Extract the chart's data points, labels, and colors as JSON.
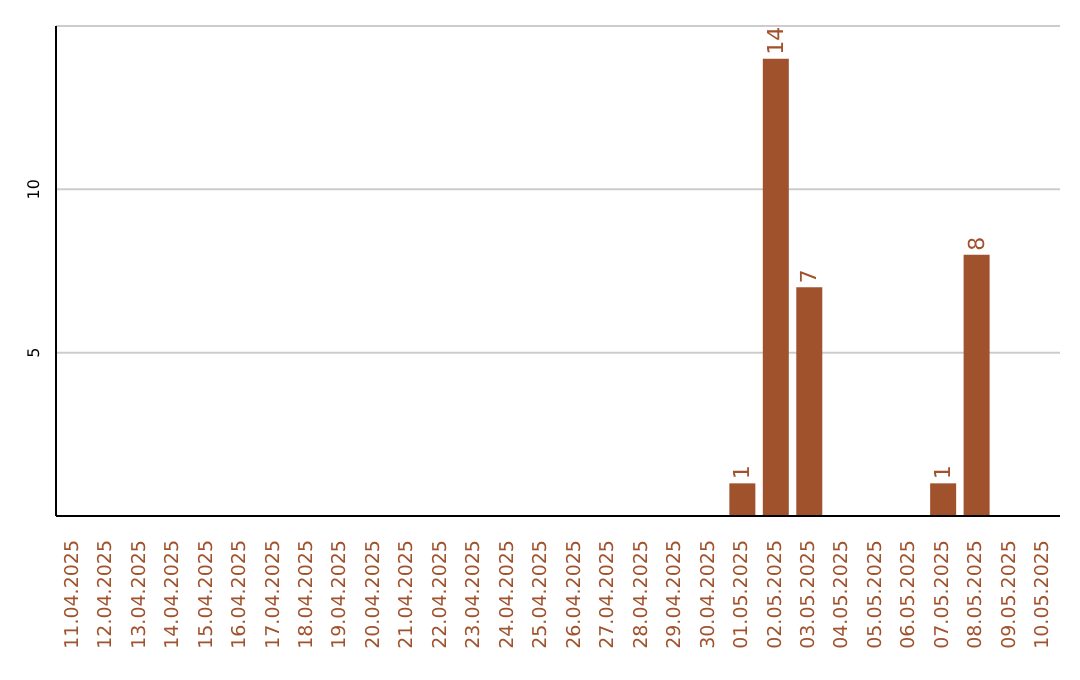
{
  "chart_data": {
    "type": "bar",
    "categories": [
      "11.04.2025",
      "12.04.2025",
      "13.04.2025",
      "14.04.2025",
      "15.04.2025",
      "16.04.2025",
      "17.04.2025",
      "18.04.2025",
      "19.04.2025",
      "20.04.2025",
      "21.04.2025",
      "22.04.2025",
      "23.04.2025",
      "24.04.2025",
      "25.04.2025",
      "26.04.2025",
      "27.04.2025",
      "28.04.2025",
      "29.04.2025",
      "30.04.2025",
      "01.05.2025",
      "02.05.2025",
      "03.05.2025",
      "04.05.2025",
      "05.05.2025",
      "06.05.2025",
      "07.05.2025",
      "08.05.2025",
      "09.05.2025",
      "10.05.2025"
    ],
    "values": [
      0,
      0,
      0,
      0,
      0,
      0,
      0,
      0,
      0,
      0,
      0,
      0,
      0,
      0,
      0,
      0,
      0,
      0,
      0,
      0,
      1,
      14,
      7,
      0,
      0,
      0,
      1,
      8,
      0,
      0
    ],
    "value_labels": [
      null,
      null,
      null,
      null,
      null,
      null,
      null,
      null,
      null,
      null,
      null,
      null,
      null,
      null,
      null,
      null,
      null,
      null,
      null,
      null,
      "1",
      "14",
      "7",
      null,
      null,
      null,
      "1",
      "8",
      null,
      null
    ],
    "color": "#a0522d",
    "ylim": [
      0,
      15
    ],
    "yticks": [
      5,
      10
    ],
    "grid": "y"
  }
}
